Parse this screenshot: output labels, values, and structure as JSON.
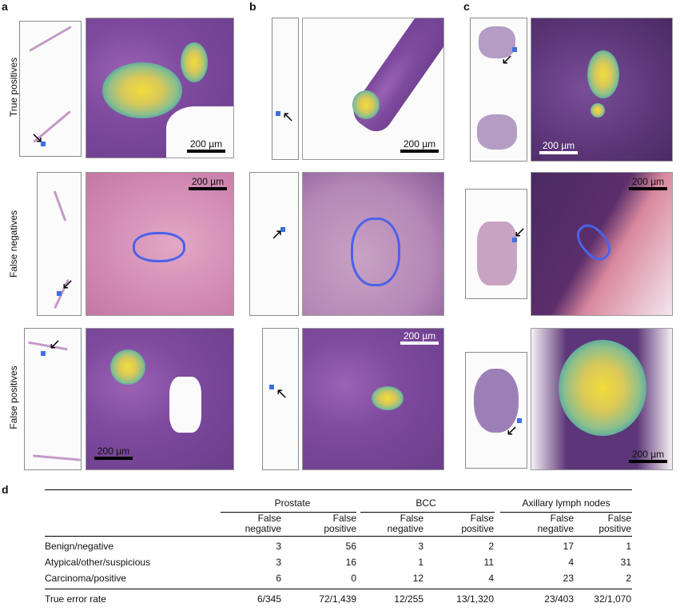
{
  "panels": {
    "a": "a",
    "b": "b",
    "c": "c",
    "d": "d"
  },
  "row_labels": [
    "True positives",
    "False negatives",
    "False positives"
  ],
  "scale_bar": "200 µm",
  "table": {
    "groups": [
      "Prostate",
      "BCC",
      "Axillary lymph nodes"
    ],
    "subheaders": [
      "False\nnegative",
      "False\npositive",
      "False\nnegative",
      "False\npositive",
      "False\nnegative",
      "False\npositive"
    ],
    "subheader_line1": [
      "False",
      "False",
      "False",
      "False",
      "False",
      "False"
    ],
    "subheader_line2": [
      "negative",
      "positive",
      "negative",
      "positive",
      "negative",
      "positive"
    ],
    "rows": [
      {
        "label": "Benign/negative",
        "values": [
          "3",
          "56",
          "3",
          "2",
          "17",
          "1"
        ]
      },
      {
        "label": "Atypical/other/suspicious",
        "values": [
          "3",
          "16",
          "1",
          "11",
          "4",
          "31"
        ]
      },
      {
        "label": "Carcinoma/positive",
        "values": [
          "6",
          "0",
          "12",
          "4",
          "23",
          "2"
        ]
      }
    ],
    "total": {
      "label": "True error rate",
      "values": [
        "6/345",
        "72/1,439",
        "12/255",
        "13/1,320",
        "23/403",
        "32/1,070"
      ]
    }
  }
}
